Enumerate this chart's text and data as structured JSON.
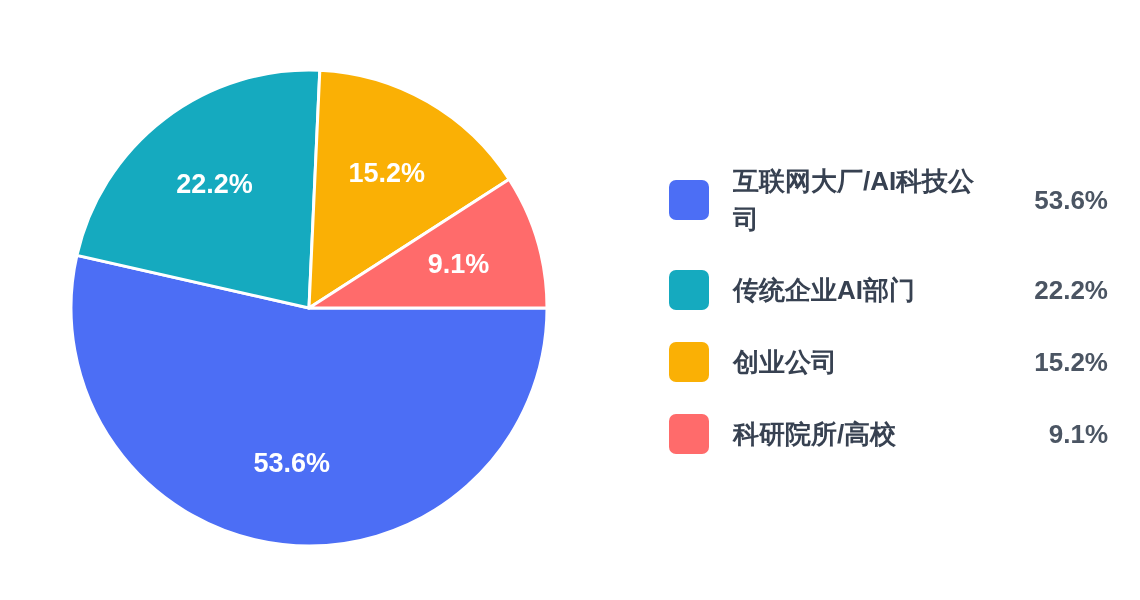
{
  "chart_data": {
    "type": "pie",
    "categories": [
      "互联网大厂/AI科技公司",
      "传统企业AI部门",
      "创业公司",
      "科研院所/高校"
    ],
    "values": [
      53.6,
      22.2,
      15.2,
      9.1
    ],
    "value_labels": [
      "53.6%",
      "22.2%",
      "15.2%",
      "9.1%"
    ],
    "colors": [
      "#4c6ef5",
      "#15aabf",
      "#fab005",
      "#ff6b6b"
    ],
    "legend": "right"
  }
}
